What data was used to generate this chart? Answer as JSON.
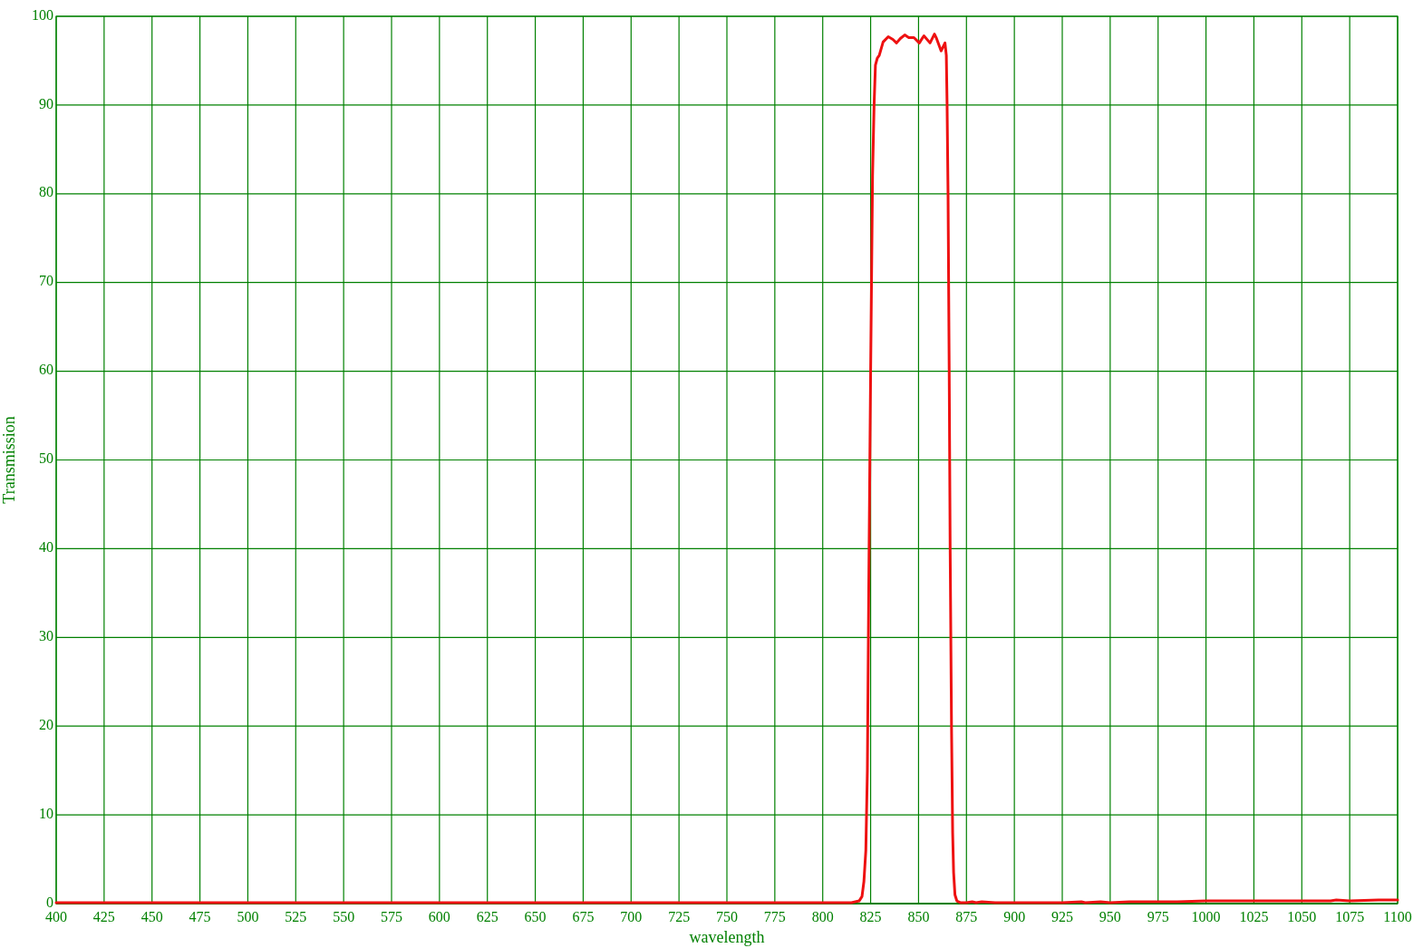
{
  "chart_data": {
    "type": "line",
    "xlabel": "wavelength",
    "ylabel": "Transmission",
    "xlim": [
      400,
      1100
    ],
    "ylim": [
      0,
      100
    ],
    "xticks": [
      400,
      425,
      450,
      475,
      500,
      525,
      550,
      575,
      600,
      625,
      650,
      675,
      700,
      725,
      750,
      775,
      800,
      825,
      850,
      875,
      900,
      925,
      950,
      975,
      1000,
      1025,
      1050,
      1075,
      1100
    ],
    "yticks": [
      0,
      10,
      20,
      30,
      40,
      50,
      60,
      70,
      80,
      90,
      100
    ],
    "grid": true,
    "series": [
      {
        "color": "#ee1111",
        "x": [
          400,
          450,
          500,
          550,
          600,
          650,
          700,
          750,
          800,
          815,
          819,
          820.5,
          821.5,
          822.5,
          823.3,
          824,
          825,
          826,
          826.8,
          827.5,
          828.5,
          829.5,
          831.5,
          834.2,
          836.6,
          838.5,
          840.5,
          842.8,
          844.9,
          847.6,
          850.4,
          852.8,
          856,
          858.3,
          859.4,
          861.8,
          863.8,
          864.5,
          864.9,
          865.4,
          866,
          866.5,
          867.2,
          867.8,
          868.3,
          869,
          870,
          872,
          875,
          878,
          880,
          883,
          890,
          900,
          925,
          935,
          937,
          945,
          950,
          960,
          975,
          985,
          1000,
          1025,
          1050,
          1065,
          1068,
          1075,
          1090,
          1100
        ],
        "values": [
          0.1,
          0.1,
          0.1,
          0.1,
          0.1,
          0.1,
          0.1,
          0.1,
          0.1,
          0.1,
          0.3,
          0.8,
          2.5,
          6,
          15,
          35,
          60,
          82,
          90,
          94.5,
          95.3,
          95.6,
          97.1,
          97.7,
          97.4,
          97,
          97.5,
          97.9,
          97.6,
          97.6,
          97,
          97.8,
          97,
          98,
          97.5,
          96.1,
          97,
          95.6,
          90,
          80,
          60,
          40,
          20,
          8,
          3.5,
          1,
          0.3,
          0.1,
          0.1,
          0.2,
          0.1,
          0.2,
          0.1,
          0.1,
          0.1,
          0.2,
          0.1,
          0.2,
          0.1,
          0.2,
          0.2,
          0.2,
          0.3,
          0.3,
          0.3,
          0.3,
          0.4,
          0.3,
          0.4,
          0.4
        ]
      }
    ]
  }
}
